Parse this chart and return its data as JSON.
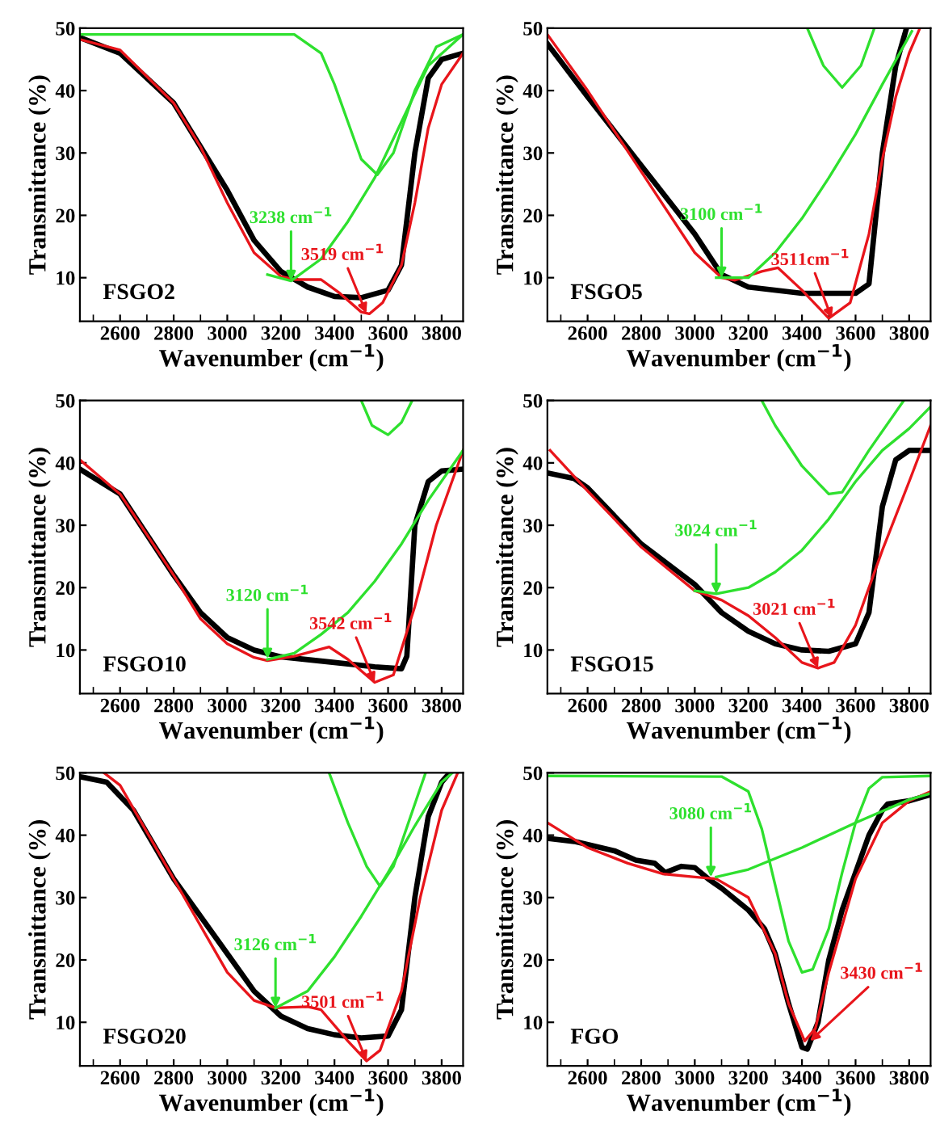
{
  "chart_data": [
    {
      "type": "line",
      "xlabel": "Wavenumber (cm$^{−1}$)",
      "ylabel": "Transmittance (%)",
      "xlim": [
        2450,
        3880
      ],
      "ylim": [
        3,
        50
      ],
      "xticks": [
        2600,
        2800,
        3000,
        3200,
        3400,
        3600,
        3800
      ],
      "yticks": [
        10,
        20,
        30,
        40,
        50
      ],
      "line_style": "solid",
      "marker": "none",
      "grid": false,
      "legend": false,
      "annotations": [
        "FSGO2",
        {
          "text": "3238 cm$^{−1}$",
          "x": 3238,
          "y": 9.5
        },
        {
          "text": "3519 cm$^{−1}$",
          "x": 3519,
          "y": 4.3
        }
      ],
      "series": [
        {
          "color": "#000000",
          "x": [
            2450,
            2600,
            2800,
            2900,
            3000,
            3100,
            3200,
            3300,
            3400,
            3500,
            3600,
            3650,
            3700,
            3750,
            3800,
            3880
          ],
          "values": [
            48.5,
            46,
            38,
            31,
            24,
            16,
            11,
            8.5,
            7,
            6.8,
            8,
            12,
            30,
            42,
            45,
            46
          ]
        },
        {
          "color": "#e8151b",
          "x": [
            2450,
            2600,
            2800,
            2900,
            3000,
            3100,
            3200,
            3250,
            3350,
            3420,
            3500,
            3530,
            3580,
            3650,
            3700,
            3750,
            3800,
            3880
          ],
          "values": [
            48.2,
            46.5,
            38,
            31,
            22,
            14,
            10.2,
            9.7,
            9.7,
            7.5,
            4.5,
            4.2,
            6,
            12,
            22,
            34,
            41,
            46
          ]
        },
        {
          "color": "#2ee02e",
          "x": [
            3150,
            3238,
            3350,
            3450,
            3550,
            3650,
            3750,
            3880
          ],
          "values": [
            10.5,
            9.5,
            13,
            19,
            26,
            35,
            44,
            49
          ]
        },
        {
          "color": "#2ee02e",
          "x": [
            2450,
            3250,
            3350,
            3400,
            3450,
            3500,
            3560,
            3620,
            3700,
            3780,
            3880
          ],
          "values": [
            49,
            49,
            46,
            41,
            35,
            29,
            26.5,
            30,
            40,
            47,
            49
          ]
        }
      ]
    },
    {
      "type": "line",
      "xlabel": "Wavenumber (cm$^{−1}$)",
      "ylabel": "Transmittance (%)",
      "xlim": [
        2450,
        3880
      ],
      "ylim": [
        3,
        50
      ],
      "xticks": [
        2600,
        2800,
        3000,
        3200,
        3400,
        3600,
        3800
      ],
      "yticks": [
        10,
        20,
        30,
        40,
        50
      ],
      "line_style": "solid",
      "marker": "none",
      "grid": false,
      "legend": false,
      "annotations": [
        "FSGO5",
        {
          "text": "3100 cm$^{−1}$",
          "x": 3100,
          "y": 10
        },
        {
          "text": "3511cm$^{−1}$",
          "x": 3511,
          "y": 3.5
        }
      ],
      "series": [
        {
          "color": "#000000",
          "x": [
            2450,
            2600,
            2800,
            3000,
            3100,
            3200,
            3400,
            3600,
            3650,
            3700,
            3750,
            3790
          ],
          "values": [
            47.5,
            39,
            28,
            17,
            10.5,
            8.5,
            7.5,
            7.5,
            9,
            30,
            44,
            50
          ]
        },
        {
          "color": "#e8151b",
          "x": [
            2450,
            2600,
            2800,
            3000,
            3100,
            3150,
            3250,
            3310,
            3400,
            3500,
            3580,
            3650,
            3700,
            3750,
            3800,
            3840
          ],
          "values": [
            49,
            40,
            27,
            14,
            10,
            9.6,
            11,
            11.6,
            8,
            3.5,
            6,
            17,
            29,
            39,
            46,
            50
          ]
        },
        {
          "color": "#2ee02e",
          "x": [
            3080,
            3200,
            3300,
            3400,
            3500,
            3600,
            3700,
            3810
          ],
          "values": [
            10,
            10,
            14,
            19.5,
            26,
            33,
            41,
            49.5
          ]
        },
        {
          "color": "#2ee02e",
          "x": [
            3420,
            3480,
            3550,
            3620,
            3670
          ],
          "values": [
            50,
            44,
            40.5,
            44,
            50
          ]
        }
      ]
    },
    {
      "type": "line",
      "xlabel": "Wavenumber (cm$^{−1}$)",
      "ylabel": "Transmittance (%)",
      "xlim": [
        2450,
        3880
      ],
      "ylim": [
        3,
        50
      ],
      "xticks": [
        2600,
        2800,
        3000,
        3200,
        3400,
        3600,
        3800
      ],
      "yticks": [
        10,
        20,
        30,
        40,
        50
      ],
      "line_style": "solid",
      "marker": "none",
      "grid": false,
      "legend": false,
      "annotations": [
        "FSGO10",
        {
          "text": "3120 cm$^{−1}$",
          "x": 3150,
          "y": 8.6
        },
        {
          "text": "3542 cm$^{−1}$",
          "x": 3550,
          "y": 4.8
        }
      ],
      "series": [
        {
          "color": "#000000",
          "x": [
            2450,
            2600,
            2800,
            2900,
            3000,
            3100,
            3200,
            3400,
            3550,
            3650,
            3670,
            3700,
            3750,
            3800,
            3880
          ],
          "values": [
            39,
            35,
            22,
            16,
            12,
            10,
            8.9,
            8,
            7.3,
            7,
            9,
            30,
            37,
            38.7,
            39
          ]
        },
        {
          "color": "#e8151b",
          "x": [
            2450,
            2600,
            2800,
            2900,
            3000,
            3100,
            3150,
            3250,
            3380,
            3450,
            3550,
            3620,
            3700,
            3780,
            3880
          ],
          "values": [
            40.5,
            35,
            22,
            15,
            11,
            8.8,
            8.3,
            9,
            10.5,
            8.5,
            4.8,
            6,
            17,
            30,
            42
          ]
        },
        {
          "color": "#2ee02e",
          "x": [
            3150,
            3250,
            3350,
            3450,
            3550,
            3650,
            3750,
            3880
          ],
          "values": [
            8.5,
            9.5,
            12.5,
            16,
            21,
            27,
            34,
            42
          ]
        },
        {
          "color": "#2ee02e",
          "x": [
            3500,
            3540,
            3600,
            3650,
            3690
          ],
          "values": [
            50,
            46,
            44.5,
            46.5,
            50
          ]
        }
      ]
    },
    {
      "type": "line",
      "xlabel": "Wavenumber (cm$^{−1}$)",
      "ylabel": "Transmittance (%)",
      "xlim": [
        2450,
        3880
      ],
      "ylim": [
        3,
        50
      ],
      "xticks": [
        2600,
        2800,
        3000,
        3200,
        3400,
        3600,
        3800
      ],
      "yticks": [
        10,
        20,
        30,
        40,
        50
      ],
      "line_style": "solid",
      "marker": "none",
      "grid": false,
      "legend": false,
      "annotations": [
        "FSGO15",
        {
          "text": "3024 cm$^{−1}$",
          "x": 3080,
          "y": 19
        },
        {
          "text": "3021 cm$^{−1}$",
          "x": 3460,
          "y": 7.1
        }
      ],
      "series": [
        {
          "color": "#000000",
          "x": [
            2460,
            2550,
            2600,
            2800,
            3000,
            3100,
            3200,
            3300,
            3400,
            3500,
            3600,
            3650,
            3700,
            3750,
            3800,
            3880
          ],
          "values": [
            38.3,
            37.5,
            36,
            27,
            20.5,
            16,
            13,
            11,
            10,
            9.8,
            11,
            16,
            33,
            40.5,
            42,
            42
          ]
        },
        {
          "color": "#e8151b",
          "x": [
            2460,
            2600,
            2800,
            3000,
            3100,
            3200,
            3300,
            3400,
            3460,
            3520,
            3600,
            3700,
            3800,
            3880
          ],
          "values": [
            42,
            35.5,
            26.5,
            19.5,
            18,
            15.5,
            12,
            8,
            7.1,
            8,
            14,
            26,
            37,
            46
          ]
        },
        {
          "color": "#2ee02e",
          "x": [
            3000,
            3080,
            3200,
            3300,
            3400,
            3500,
            3600,
            3700,
            3800,
            3880
          ],
          "values": [
            19.5,
            19,
            20,
            22.5,
            26,
            31,
            37,
            42,
            45.5,
            49
          ]
        },
        {
          "color": "#2ee02e",
          "x": [
            3250,
            3300,
            3400,
            3500,
            3550,
            3650,
            3780
          ],
          "values": [
            50,
            46,
            39.5,
            35,
            35.3,
            42,
            50
          ]
        }
      ]
    },
    {
      "type": "line",
      "xlabel": "Wavenumber (cm$^{−1}$)",
      "ylabel": "Transmittance (%)",
      "xlim": [
        2450,
        3880
      ],
      "ylim": [
        3,
        50
      ],
      "xticks": [
        2600,
        2800,
        3000,
        3200,
        3400,
        3600,
        3800
      ],
      "yticks": [
        10,
        20,
        30,
        40,
        50
      ],
      "line_style": "solid",
      "marker": "none",
      "grid": false,
      "legend": false,
      "annotations": [
        "FSGO20",
        {
          "text": "3126 cm$^{−1}$",
          "x": 3180,
          "y": 12.3
        },
        {
          "text": "3501 cm$^{−1}$",
          "x": 3520,
          "y": 3.8
        }
      ],
      "series": [
        {
          "color": "#000000",
          "x": [
            2460,
            2550,
            2650,
            2800,
            3000,
            3100,
            3200,
            3300,
            3400,
            3500,
            3600,
            3650,
            3700,
            3750,
            3800,
            3830
          ],
          "values": [
            49.3,
            48.5,
            44,
            33,
            21,
            15,
            11,
            9,
            8,
            7.5,
            7.8,
            12,
            30,
            43,
            48.5,
            50
          ]
        },
        {
          "color": "#e8151b",
          "x": [
            2540,
            2600,
            2800,
            3000,
            3100,
            3180,
            3300,
            3350,
            3450,
            3520,
            3570,
            3650,
            3720,
            3800,
            3860
          ],
          "values": [
            50,
            48,
            33,
            18,
            13.5,
            12.3,
            12.5,
            12,
            7,
            3.8,
            5.5,
            15,
            30,
            44,
            50
          ]
        },
        {
          "color": "#2ee02e",
          "x": [
            3180,
            3300,
            3400,
            3500,
            3600,
            3700,
            3800,
            3840
          ],
          "values": [
            12.3,
            15,
            20.5,
            27,
            34,
            41.5,
            48.5,
            50
          ]
        },
        {
          "color": "#2ee02e",
          "x": [
            3380,
            3450,
            3520,
            3570,
            3620,
            3700,
            3740
          ],
          "values": [
            50,
            42,
            35,
            31.8,
            35,
            45,
            50
          ]
        }
      ]
    },
    {
      "type": "line",
      "xlabel": "Wavenumber (cm$^{−1}$)",
      "ylabel": "Transmittance (%)",
      "xlim": [
        2450,
        3880
      ],
      "ylim": [
        3,
        50
      ],
      "xticks": [
        2600,
        2800,
        3000,
        3200,
        3400,
        3600,
        3800
      ],
      "yticks": [
        10,
        20,
        30,
        40,
        50
      ],
      "line_style": "solid",
      "marker": "none",
      "grid": false,
      "legend": false,
      "annotations": [
        "FGO",
        {
          "text": "3080 cm$^{−1}$",
          "x": 3060,
          "y": 33.3
        },
        {
          "text": "3430 cm$^{−1}$",
          "x": 3430,
          "y": 7
        }
      ],
      "series": [
        {
          "color": "#000000",
          "x": [
            2450,
            2550,
            2700,
            2780,
            2850,
            2890,
            2950,
            3000,
            3050,
            3100,
            3200,
            3260,
            3300,
            3350,
            3400,
            3420,
            3460,
            3500,
            3550,
            3600,
            3650,
            3700,
            3720,
            3800,
            3880
          ],
          "values": [
            39.5,
            39,
            37.5,
            36,
            35.5,
            34,
            35,
            34.8,
            33,
            31.5,
            28,
            25,
            21,
            13,
            6,
            5.7,
            10,
            20,
            28,
            34,
            40,
            44,
            45,
            45.5,
            46.5
          ]
        },
        {
          "color": "#e8151b",
          "x": [
            2450,
            2600,
            2750,
            2880,
            3000,
            3080,
            3200,
            3300,
            3350,
            3410,
            3450,
            3500,
            3600,
            3700,
            3800,
            3880
          ],
          "values": [
            42,
            38,
            35.5,
            33.8,
            33.3,
            33,
            30,
            21,
            13,
            7,
            9,
            18,
            33,
            42,
            45.5,
            47
          ]
        },
        {
          "color": "#2ee02e",
          "x": [
            3080,
            3200,
            3400,
            3600,
            3800,
            3880
          ],
          "values": [
            33.3,
            34.5,
            38,
            42,
            45.7,
            46.7
          ]
        },
        {
          "color": "#2ee02e",
          "x": [
            2450,
            3100,
            3200,
            3250,
            3300,
            3350,
            3400,
            3440,
            3500,
            3550,
            3600,
            3650,
            3700,
            3880
          ],
          "values": [
            49.5,
            49.4,
            47,
            41,
            32,
            23,
            18,
            18.5,
            25,
            34,
            42,
            47.5,
            49.3,
            49.5
          ]
        }
      ]
    }
  ]
}
